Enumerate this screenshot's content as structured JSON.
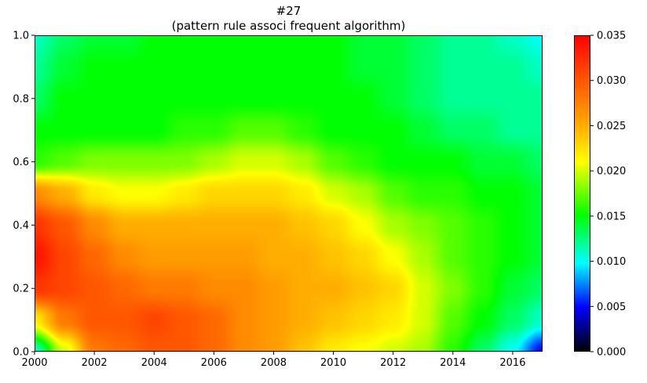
{
  "chart_data": {
    "type": "heatmap",
    "title": "#27",
    "subtitle": "(pattern rule associ frequent algorithm)",
    "xlabel": "",
    "ylabel": "",
    "xlim": [
      2000,
      2017
    ],
    "ylim": [
      0.0,
      1.0
    ],
    "x_ticks": [
      "2000",
      "2002",
      "2004",
      "2006",
      "2008",
      "2010",
      "2012",
      "2014",
      "2016"
    ],
    "y_ticks": [
      "0.0",
      "0.2",
      "0.4",
      "0.6",
      "0.8",
      "1.0"
    ],
    "colorbar": {
      "range": [
        0.0,
        0.035
      ],
      "ticks": [
        "0.000",
        "0.005",
        "0.010",
        "0.015",
        "0.020",
        "0.025",
        "0.030",
        "0.035"
      ],
      "colormap": "hsv-like (black-blue-cyan-green-yellow-orange-red)"
    },
    "x": [
      2000,
      2001,
      2002,
      2003,
      2004,
      2005,
      2006,
      2007,
      2008,
      2009,
      2010,
      2011,
      2012,
      2013,
      2014,
      2015,
      2016,
      2017
    ],
    "y": [
      0.0,
      0.1,
      0.2,
      0.3,
      0.4,
      0.5,
      0.6,
      0.7,
      0.8,
      0.9,
      1.0
    ],
    "z": [
      [
        0.011,
        0.02,
        0.028,
        0.029,
        0.03,
        0.03,
        0.029,
        0.027,
        0.026,
        0.024,
        0.022,
        0.021,
        0.02,
        0.019,
        0.016,
        0.013,
        0.01,
        0.005
      ],
      [
        0.022,
        0.028,
        0.03,
        0.03,
        0.031,
        0.03,
        0.029,
        0.027,
        0.026,
        0.025,
        0.024,
        0.023,
        0.022,
        0.02,
        0.017,
        0.015,
        0.013,
        0.011
      ],
      [
        0.032,
        0.031,
        0.03,
        0.029,
        0.028,
        0.028,
        0.027,
        0.027,
        0.026,
        0.025,
        0.025,
        0.024,
        0.023,
        0.02,
        0.018,
        0.016,
        0.014,
        0.013
      ],
      [
        0.034,
        0.031,
        0.029,
        0.027,
        0.026,
        0.026,
        0.026,
        0.026,
        0.025,
        0.025,
        0.024,
        0.023,
        0.021,
        0.019,
        0.017,
        0.016,
        0.015,
        0.014
      ],
      [
        0.032,
        0.03,
        0.027,
        0.025,
        0.025,
        0.025,
        0.025,
        0.025,
        0.025,
        0.024,
        0.023,
        0.021,
        0.019,
        0.018,
        0.017,
        0.016,
        0.015,
        0.014
      ],
      [
        0.027,
        0.025,
        0.022,
        0.021,
        0.021,
        0.022,
        0.023,
        0.023,
        0.023,
        0.022,
        0.02,
        0.019,
        0.017,
        0.016,
        0.016,
        0.015,
        0.015,
        0.014
      ],
      [
        0.016,
        0.017,
        0.018,
        0.018,
        0.018,
        0.018,
        0.019,
        0.02,
        0.02,
        0.019,
        0.017,
        0.016,
        0.015,
        0.015,
        0.015,
        0.014,
        0.014,
        0.013
      ],
      [
        0.015,
        0.015,
        0.015,
        0.015,
        0.015,
        0.016,
        0.016,
        0.017,
        0.017,
        0.016,
        0.015,
        0.015,
        0.015,
        0.014,
        0.013,
        0.013,
        0.012,
        0.012
      ],
      [
        0.013,
        0.015,
        0.015,
        0.015,
        0.015,
        0.015,
        0.015,
        0.015,
        0.015,
        0.015,
        0.015,
        0.015,
        0.014,
        0.013,
        0.012,
        0.012,
        0.012,
        0.012
      ],
      [
        0.012,
        0.014,
        0.015,
        0.015,
        0.015,
        0.015,
        0.015,
        0.015,
        0.015,
        0.015,
        0.015,
        0.014,
        0.014,
        0.013,
        0.012,
        0.012,
        0.012,
        0.011
      ],
      [
        0.011,
        0.013,
        0.014,
        0.014,
        0.015,
        0.015,
        0.015,
        0.015,
        0.015,
        0.015,
        0.015,
        0.014,
        0.014,
        0.013,
        0.012,
        0.012,
        0.011,
        0.01
      ]
    ]
  }
}
